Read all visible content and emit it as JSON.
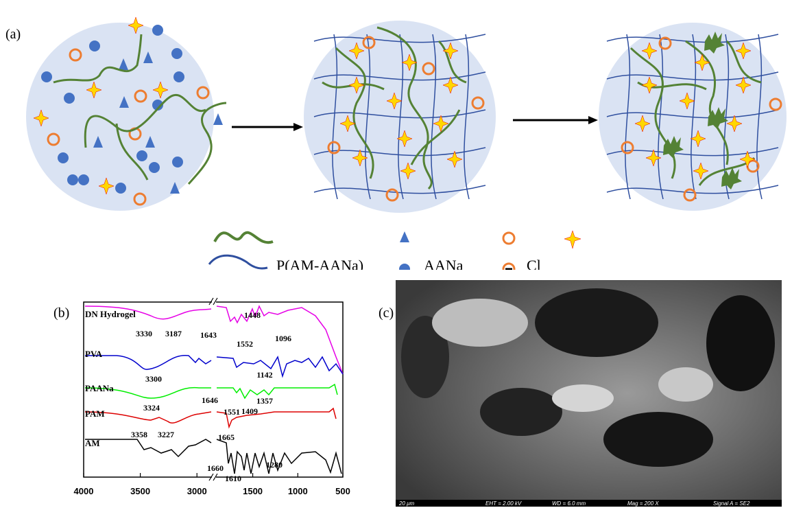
{
  "panels": {
    "a": {
      "label": "(a)",
      "legend": [
        "P(AM-AANa)",
        "AANa",
        "Cl"
      ]
    },
    "b": {
      "label": "(b)",
      "series_labels": [
        "DN Hydrogel",
        "PVA",
        "PAANa",
        "PAM",
        "AM"
      ],
      "annotations": [
        3330,
        3187,
        1643,
        1448,
        1552,
        1096,
        3300,
        1142,
        3324,
        1646,
        1551,
        1409,
        1357,
        3358,
        3227,
        1665,
        1660,
        1610,
        1280
      ],
      "xlim": [
        [
          4000,
          2850
        ],
        [
          1900,
          500
        ]
      ],
      "xticks": [
        4000,
        3500,
        3000,
        1500,
        1000,
        500
      ]
    },
    "c": {
      "label": "(c)",
      "info_bar": [
        "20 μm",
        "EHT = 2.00 kV",
        "WD = 6.0 mm",
        "Mag = 200 X",
        "Signal A = SE2"
      ]
    }
  }
}
